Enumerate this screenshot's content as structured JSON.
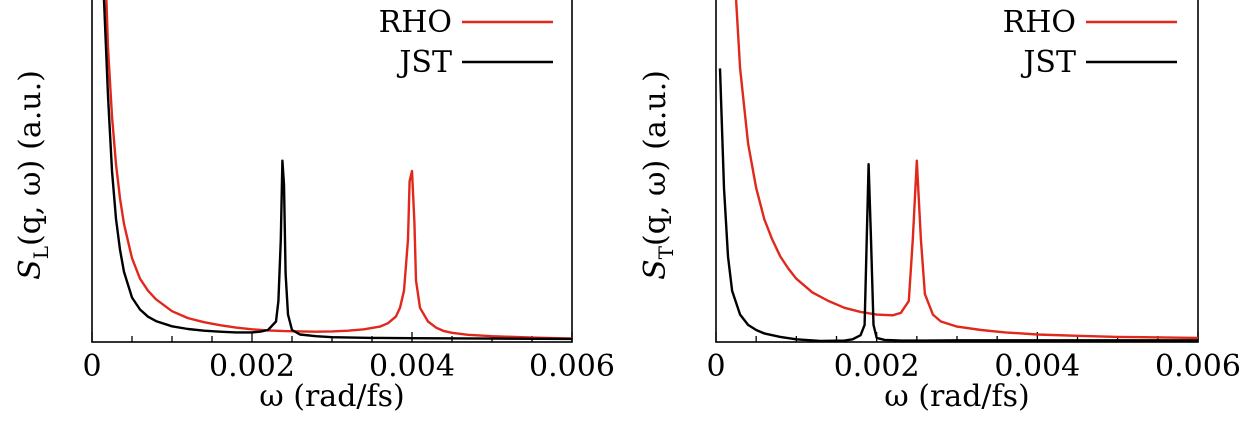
{
  "chart_data": [
    {
      "type": "line",
      "xlabel": "ω (rad/fs)",
      "ylabel_parts": {
        "symbol": "S",
        "subscript": "L",
        "args": "(q, ω)",
        "unit": "(a.u.)"
      },
      "x_ticks": [
        0,
        0.002,
        0.004,
        0.006
      ],
      "x_tick_labels": [
        "0",
        "0.002",
        "0.004",
        "0.006"
      ],
      "xlim": [
        0,
        0.006
      ],
      "ylim": [
        0,
        1
      ],
      "legend": {
        "position": "top-right",
        "entries": [
          "RHO",
          "JST"
        ]
      },
      "colors": {
        "RHO": "#e0281c",
        "JST": "#000000"
      },
      "series": [
        {
          "name": "RHO",
          "x": [
            0.00018,
            0.0002,
            0.00025,
            0.0003,
            0.00035,
            0.0004,
            0.0005,
            0.0006,
            0.0007,
            0.0008,
            0.001,
            0.0012,
            0.0014,
            0.0016,
            0.0018,
            0.002,
            0.0022,
            0.0024,
            0.0026,
            0.0028,
            0.003,
            0.0032,
            0.0034,
            0.0036,
            0.0037,
            0.0038,
            0.00385,
            0.0039,
            0.00395,
            0.00397,
            0.004,
            0.00403,
            0.00405,
            0.0041,
            0.0042,
            0.0043,
            0.0044,
            0.0045,
            0.0047,
            0.005,
            0.0055,
            0.006
          ],
          "y": [
            1.0,
            0.86,
            0.66,
            0.52,
            0.42,
            0.345,
            0.245,
            0.185,
            0.15,
            0.125,
            0.09,
            0.07,
            0.058,
            0.049,
            0.042,
            0.037,
            0.034,
            0.032,
            0.031,
            0.03,
            0.031,
            0.033,
            0.037,
            0.045,
            0.055,
            0.075,
            0.1,
            0.15,
            0.3,
            0.47,
            0.5,
            0.35,
            0.18,
            0.1,
            0.06,
            0.042,
            0.032,
            0.027,
            0.021,
            0.017,
            0.013,
            0.01
          ]
        },
        {
          "name": "JST",
          "x": [
            0.00015,
            0.0002,
            0.00025,
            0.0003,
            0.00035,
            0.0004,
            0.0005,
            0.0006,
            0.0007,
            0.0008,
            0.001,
            0.0012,
            0.0014,
            0.0016,
            0.0018,
            0.002,
            0.0021,
            0.0022,
            0.0023,
            0.00233,
            0.00236,
            0.00238,
            0.0024,
            0.00242,
            0.00245,
            0.0025,
            0.0026,
            0.0028,
            0.003,
            0.0035,
            0.004,
            0.005,
            0.006
          ],
          "y": [
            1.0,
            0.72,
            0.5,
            0.36,
            0.27,
            0.205,
            0.13,
            0.095,
            0.074,
            0.061,
            0.046,
            0.038,
            0.033,
            0.03,
            0.028,
            0.028,
            0.03,
            0.035,
            0.06,
            0.12,
            0.3,
            0.53,
            0.46,
            0.2,
            0.08,
            0.035,
            0.022,
            0.017,
            0.014,
            0.012,
            0.011,
            0.01,
            0.009
          ]
        }
      ]
    },
    {
      "type": "line",
      "xlabel": "ω (rad/fs)",
      "ylabel_parts": {
        "symbol": "S",
        "subscript": "T",
        "args": "(q, ω)",
        "unit": "(a.u.)"
      },
      "x_ticks": [
        0,
        0.002,
        0.004,
        0.006
      ],
      "x_tick_labels": [
        "0",
        "0.002",
        "0.004",
        "0.006"
      ],
      "xlim": [
        0,
        0.006
      ],
      "ylim": [
        0,
        1
      ],
      "legend": {
        "position": "top-right",
        "entries": [
          "RHO",
          "JST"
        ]
      },
      "colors": {
        "RHO": "#e0281c",
        "JST": "#000000"
      },
      "series": [
        {
          "name": "RHO",
          "x": [
            0.00025,
            0.0003,
            0.0004,
            0.0005,
            0.0006,
            0.0007,
            0.0008,
            0.0009,
            0.001,
            0.0012,
            0.0014,
            0.0016,
            0.0018,
            0.002,
            0.0022,
            0.0023,
            0.0024,
            0.00245,
            0.0025,
            0.00255,
            0.0026,
            0.0027,
            0.0028,
            0.003,
            0.0033,
            0.0036,
            0.004,
            0.0045,
            0.005,
            0.006
          ],
          "y": [
            1.0,
            0.8,
            0.58,
            0.45,
            0.36,
            0.3,
            0.25,
            0.215,
            0.185,
            0.145,
            0.12,
            0.1,
            0.088,
            0.08,
            0.078,
            0.085,
            0.12,
            0.3,
            0.53,
            0.3,
            0.14,
            0.08,
            0.06,
            0.045,
            0.035,
            0.028,
            0.022,
            0.018,
            0.015,
            0.012
          ]
        },
        {
          "name": "JST",
          "x": [
            5e-05,
            0.0001,
            0.00015,
            0.0002,
            0.0003,
            0.0004,
            0.0005,
            0.0006,
            0.0008,
            0.001,
            0.0013,
            0.0016,
            0.0017,
            0.0018,
            0.00185,
            0.0019,
            0.00193,
            0.00196,
            0.002,
            0.0021,
            0.0023,
            0.0026,
            0.003,
            0.004,
            0.005,
            0.006
          ],
          "y": [
            0.8,
            0.45,
            0.25,
            0.15,
            0.08,
            0.05,
            0.035,
            0.025,
            0.015,
            0.008,
            0.003,
            0.004,
            0.008,
            0.02,
            0.05,
            0.52,
            0.3,
            0.05,
            0.012,
            0.006,
            0.004,
            0.004,
            0.005,
            0.005,
            0.005,
            0.005
          ]
        }
      ]
    }
  ]
}
